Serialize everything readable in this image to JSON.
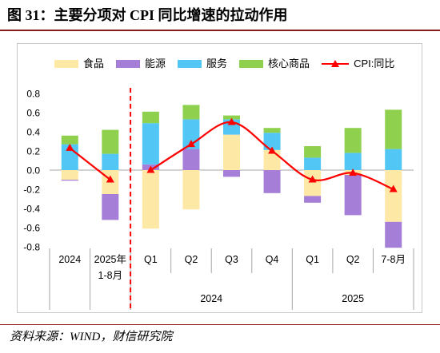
{
  "title": "图 31：主要分项对 CPI 同比增速的拉动作用",
  "source": "资料来源：WIND，财信研究院",
  "chart_data": {
    "type": "bar",
    "stacked": true,
    "categories": [
      [
        "2024"
      ],
      [
        "2025年",
        "1-8月"
      ],
      [
        "Q1"
      ],
      [
        "Q2"
      ],
      [
        "Q3"
      ],
      [
        "Q4"
      ],
      [
        "Q1"
      ],
      [
        "Q2"
      ],
      [
        "7-8月"
      ]
    ],
    "category_groups": [
      {
        "label": "2024",
        "first": 2,
        "last": 5
      },
      {
        "label": "2025",
        "first": 6,
        "last": 8
      }
    ],
    "series": [
      {
        "name": "食品",
        "type": "bar",
        "color": "#FDE8A5",
        "values": [
          -0.1,
          -0.25,
          -0.61,
          -0.41,
          0.37,
          0.21,
          -0.27,
          -0.05,
          -0.54
        ]
      },
      {
        "name": "能源",
        "type": "bar",
        "color": "#A57ED7",
        "values": [
          -0.01,
          -0.27,
          0.06,
          0.22,
          -0.07,
          -0.24,
          -0.07,
          -0.42,
          -0.27
        ]
      },
      {
        "name": "服务",
        "type": "bar",
        "color": "#52C6F4",
        "values": [
          0.27,
          0.17,
          0.43,
          0.31,
          0.16,
          0.18,
          0.13,
          0.18,
          0.22
        ]
      },
      {
        "name": "核心商品",
        "type": "bar",
        "color": "#8FD14F",
        "values": [
          0.09,
          0.25,
          0.12,
          0.15,
          0.04,
          0.05,
          0.12,
          0.26,
          0.41
        ]
      },
      {
        "name": "CPI:同比",
        "type": "line",
        "color": "#FF0000",
        "marker": "triangle",
        "smooth": true,
        "values": [
          0.23,
          -0.1,
          0.0,
          0.27,
          0.5,
          0.2,
          -0.1,
          -0.03,
          -0.2
        ],
        "segments": [
          [
            0,
            1
          ],
          [
            2,
            8
          ]
        ]
      }
    ],
    "ylim": [
      -0.8,
      0.8
    ],
    "y_ticks": [
      0.8,
      0.6,
      0.4,
      0.2,
      0.0,
      -0.2,
      -0.4,
      -0.6,
      -0.8
    ],
    "grid": false,
    "legend_position": "top",
    "divider": {
      "after_category": 1,
      "color": "#FF0000",
      "style": "dashed"
    }
  }
}
